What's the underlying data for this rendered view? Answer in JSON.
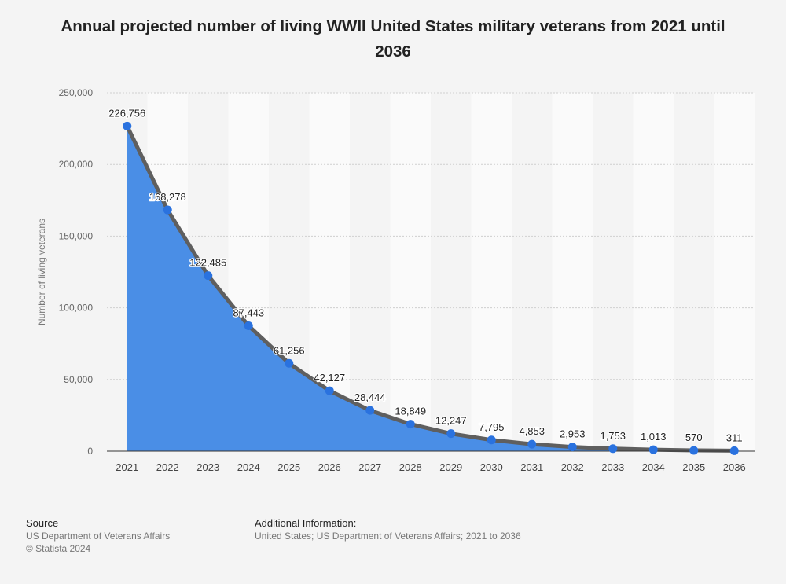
{
  "chart_data": {
    "type": "area",
    "title": "Annual projected number of living WWII United States military veterans from 2021 until 2036",
    "xlabel": "",
    "ylabel": "Number of living veterans",
    "categories": [
      "2021",
      "2022",
      "2023",
      "2024",
      "2025",
      "2026",
      "2027",
      "2028",
      "2029",
      "2030",
      "2031",
      "2032",
      "2033",
      "2034",
      "2035",
      "2036"
    ],
    "values": [
      226756,
      168278,
      122485,
      87443,
      61256,
      42127,
      28444,
      18849,
      12247,
      7795,
      4853,
      2953,
      1753,
      1013,
      570,
      311
    ],
    "value_labels": [
      "226,756",
      "168,278",
      "122,485",
      "87,443",
      "61,256",
      "42,127",
      "28,444",
      "18,849",
      "12,247",
      "7,795",
      "4,853",
      "2,953",
      "1,753",
      "1,013",
      "570",
      "311"
    ],
    "ylim": [
      0,
      250000
    ],
    "yticks": [
      0,
      50000,
      100000,
      150000,
      200000,
      250000
    ],
    "ytick_labels": [
      "0",
      "50,000",
      "100,000",
      "150,000",
      "200,000",
      "250,000"
    ],
    "grid": true,
    "colors": {
      "fill": "#4a8ee6",
      "line": "#5f5f5f",
      "point": "#2a72df"
    }
  },
  "footer": {
    "source_head": "Source",
    "source_line1": "US Department of Veterans Affairs",
    "source_line2": "© Statista 2024",
    "info_head": "Additional Information:",
    "info_line": "United States; US Department of Veterans Affairs; 2021 to 2036"
  }
}
